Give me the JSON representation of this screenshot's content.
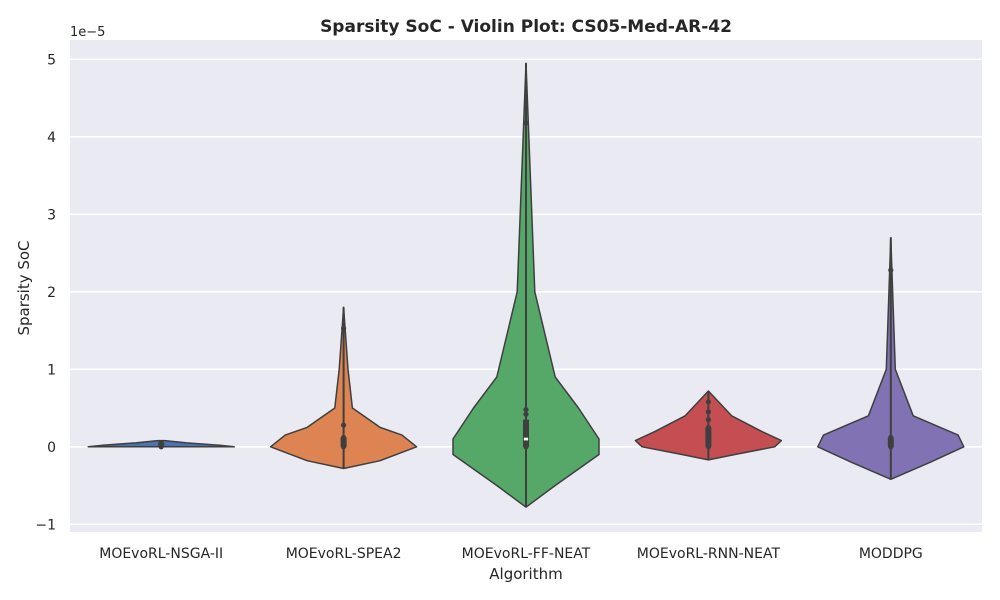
{
  "chart_data": {
    "type": "violin",
    "title": "Sparsity SoC - Violin Plot: CS05-Med-AR-42",
    "xlabel": "Algorithm",
    "ylabel": "Sparsity SoC",
    "y_offset_text": "1e−5",
    "ylim": [
      -1.1,
      5.25
    ],
    "yticks": [
      -1,
      0,
      1,
      2,
      3,
      4,
      5
    ],
    "ytick_labels": [
      "−1",
      "0",
      "1",
      "2",
      "3",
      "4",
      "5"
    ],
    "grid": true,
    "categories": [
      "MOEvoRL-NSGA-II",
      "MOEvoRL-SPEA2",
      "MOEvoRL-FF-NEAT",
      "MOEvoRL-RNN-NEAT",
      "MODDPG"
    ],
    "colors": [
      "#4c72b0",
      "#dd8452",
      "#55a868",
      "#c44e52",
      "#8172b3"
    ],
    "series": [
      {
        "min": 0,
        "max": 0.08,
        "q1": 0,
        "median": 0.02,
        "q3": 0.05,
        "points": [
          0.05,
          0.02,
          0
        ],
        "density": [
          [
            0.0,
            1.0
          ],
          [
            0.02,
            0.8
          ],
          [
            0.05,
            0.35
          ],
          [
            0.08,
            0.05
          ]
        ]
      },
      {
        "min": -0.28,
        "max": 1.8,
        "q1": 0,
        "median": 0.05,
        "q3": 0.12,
        "points": [
          1.53,
          0.28,
          0.12,
          0.05,
          0
        ],
        "density": [
          [
            -0.28,
            0.0
          ],
          [
            -0.18,
            0.05
          ],
          [
            0.0,
            0.1
          ],
          [
            0.15,
            0.08
          ],
          [
            0.25,
            0.05
          ],
          [
            0.5,
            0.012
          ],
          [
            1.0,
            0.006
          ],
          [
            1.8,
            0.0
          ]
        ]
      },
      {
        "min": -0.78,
        "max": 4.95,
        "q1": 0,
        "median": 0.1,
        "q3": 0.35,
        "points": [
          4.18,
          0.48,
          0.42,
          0.3,
          0.15,
          0.05,
          0
        ],
        "density": [
          [
            -0.78,
            0.0
          ],
          [
            -0.5,
            0.01
          ],
          [
            -0.1,
            0.025
          ],
          [
            0.1,
            0.025
          ],
          [
            0.5,
            0.018
          ],
          [
            0.9,
            0.01
          ],
          [
            2.0,
            0.003
          ],
          [
            4.95,
            0.0
          ]
        ]
      },
      {
        "min": -0.17,
        "max": 0.72,
        "q1": 0,
        "median": 0.1,
        "q3": 0.25,
        "points": [
          0.58,
          0.45,
          0.35,
          0.25,
          0.1,
          0
        ],
        "density": [
          [
            -0.17,
            0.0
          ],
          [
            -0.1,
            0.04
          ],
          [
            0.0,
            0.1
          ],
          [
            0.08,
            0.11
          ],
          [
            0.2,
            0.08
          ],
          [
            0.4,
            0.035
          ],
          [
            0.72,
            0.0
          ]
        ]
      },
      {
        "min": -0.42,
        "max": 2.7,
        "q1": 0,
        "median": 0.05,
        "q3": 0.12,
        "points": [
          2.28,
          0.12,
          0.05,
          0
        ],
        "density": [
          [
            -0.42,
            0.0
          ],
          [
            -0.2,
            0.035
          ],
          [
            0.0,
            0.065
          ],
          [
            0.15,
            0.06
          ],
          [
            0.4,
            0.02
          ],
          [
            1.0,
            0.004
          ],
          [
            2.7,
            0.0
          ]
        ]
      }
    ]
  }
}
